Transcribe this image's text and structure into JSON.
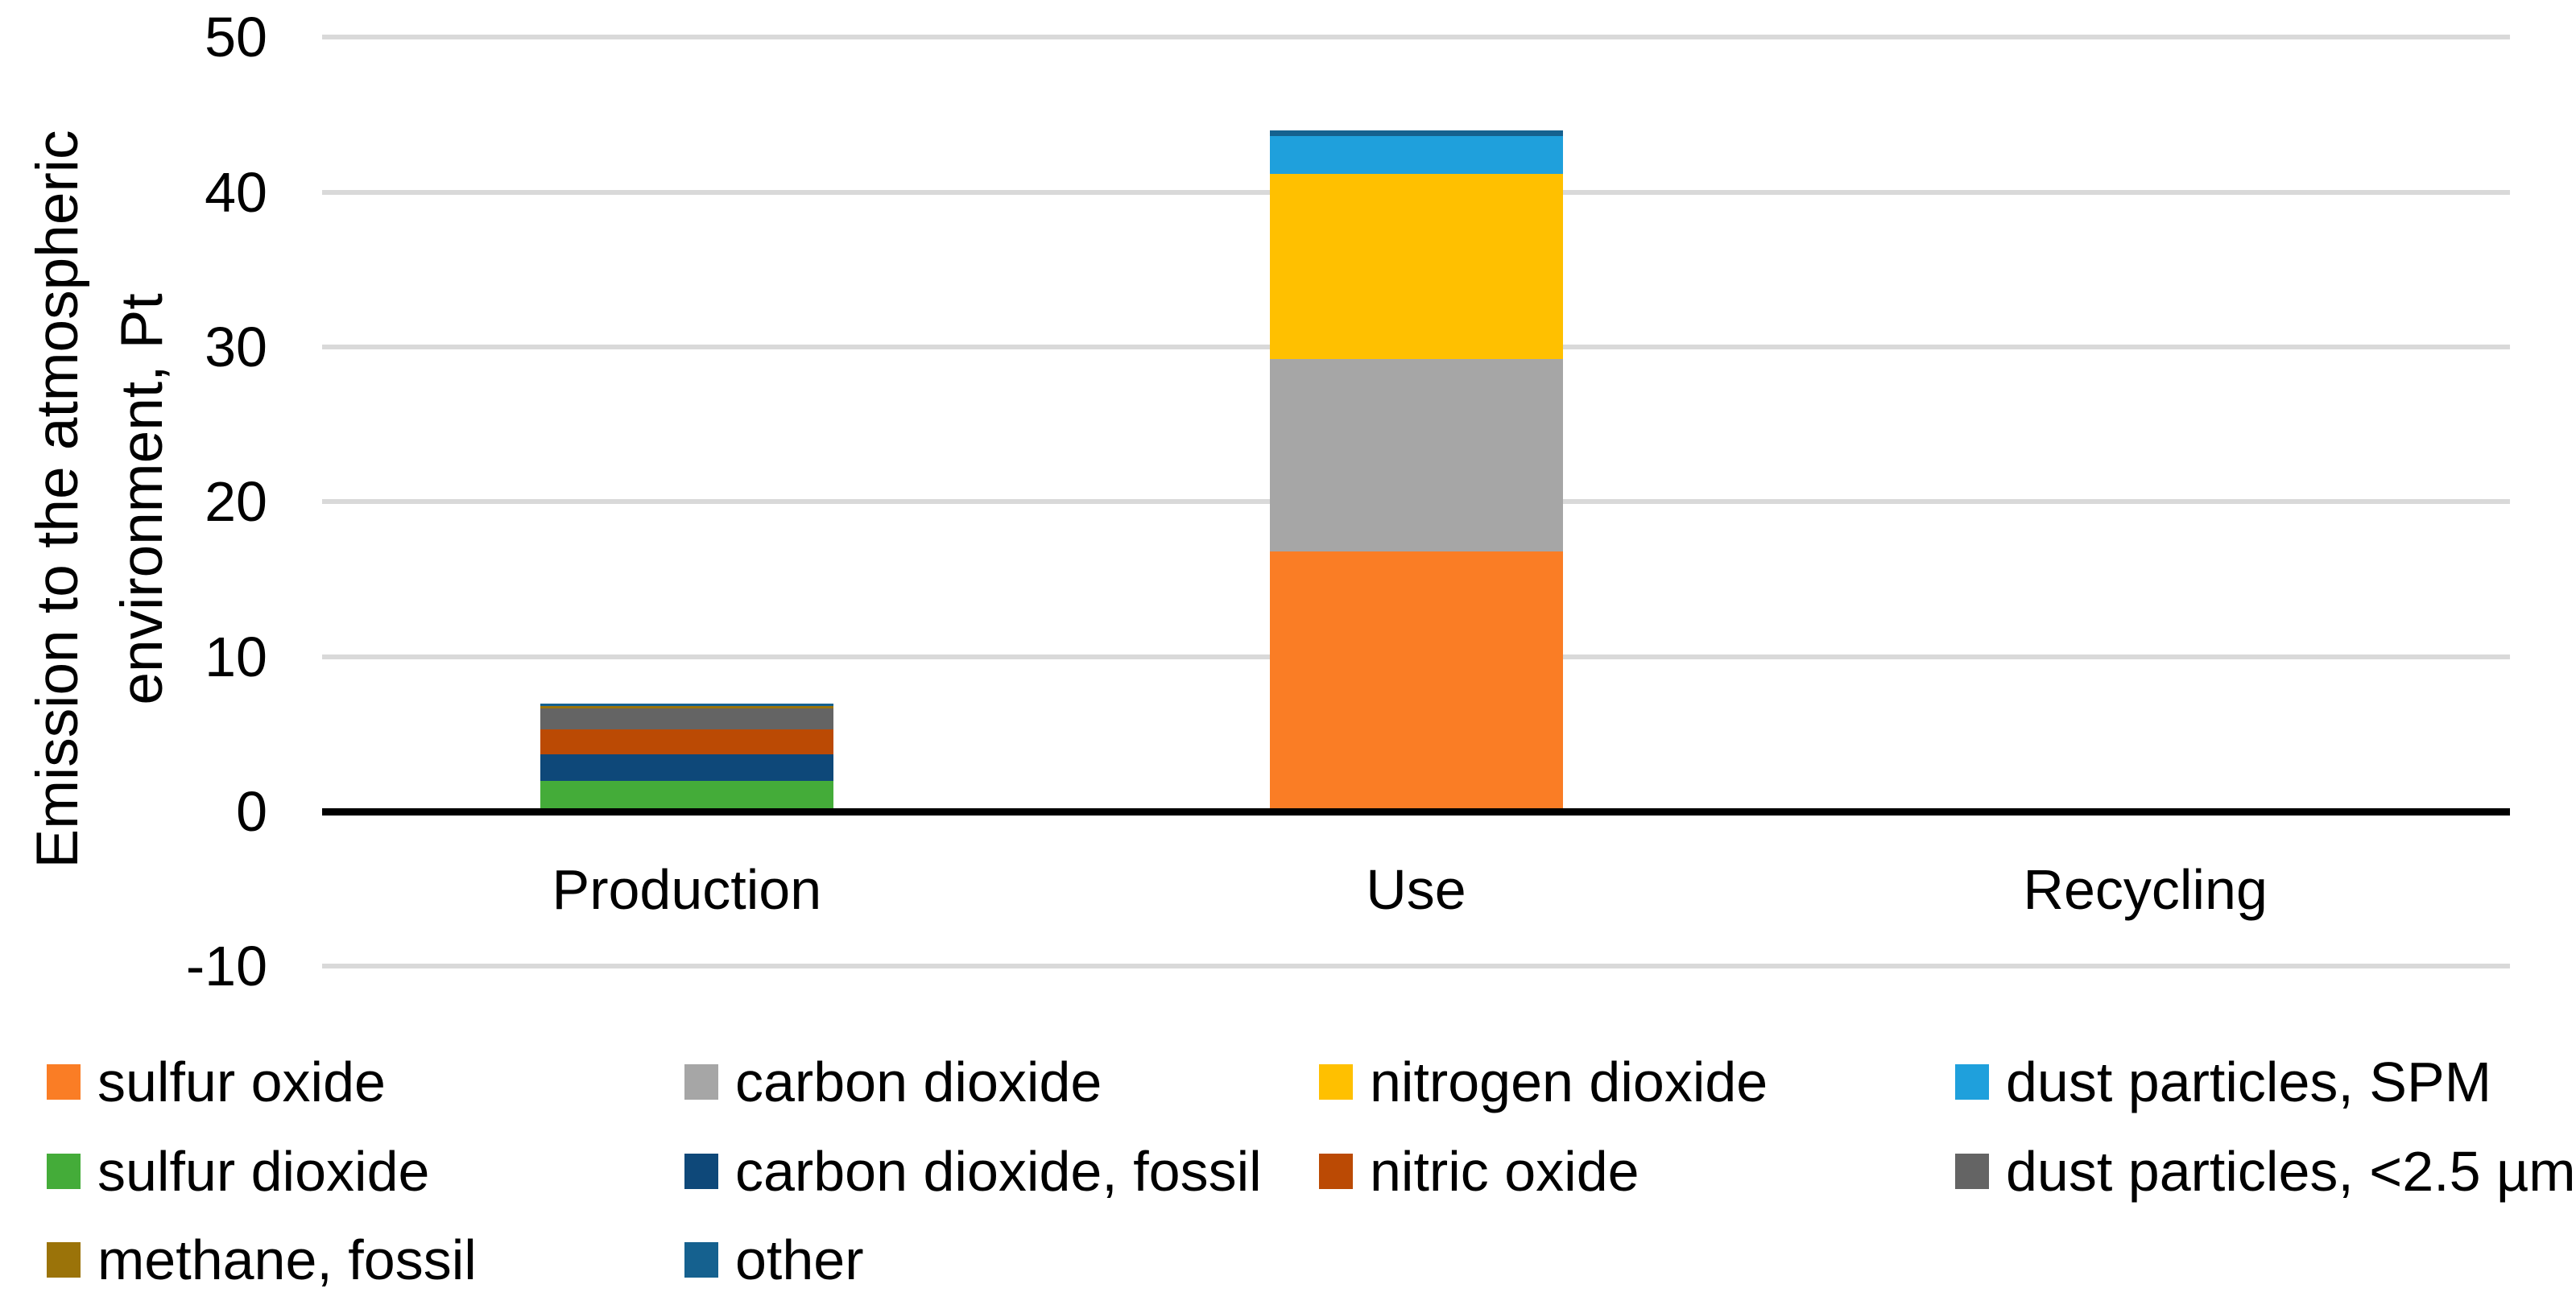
{
  "page": {
    "background": "#FFFFFF",
    "text_color": "#000000"
  },
  "chart_data": {
    "type": "bar",
    "stacked": true,
    "title": "",
    "categories": [
      "Production",
      "Use",
      "Recycling"
    ],
    "series": [
      {
        "name": "sulfur oxide",
        "color": "#FA7D25",
        "values": [
          0,
          16.8,
          0
        ]
      },
      {
        "name": "carbon dioxide",
        "color": "#A6A6A6",
        "values": [
          0,
          12.4,
          0
        ]
      },
      {
        "name": "nitrogen dioxide",
        "color": "#FFC000",
        "values": [
          0,
          12.0,
          0
        ]
      },
      {
        "name": "dust particles, SPM",
        "color": "#1FA0DC",
        "values": [
          0,
          2.4,
          0
        ]
      },
      {
        "name": "sulfur dioxide",
        "color": "#44AC39",
        "values": [
          2.0,
          0,
          0
        ]
      },
      {
        "name": "carbon dioxide, fossil",
        "color": "#0E4879",
        "values": [
          1.7,
          0,
          0
        ]
      },
      {
        "name": "nitric oxide",
        "color": "#BB4A04",
        "values": [
          1.6,
          0,
          0
        ]
      },
      {
        "name": "dust particles, <2.5 µm",
        "color": "#646464",
        "values": [
          1.35,
          0,
          0
        ]
      },
      {
        "name": "methane, fossil",
        "color": "#9B7309",
        "values": [
          0.17,
          0,
          0
        ]
      },
      {
        "name": "other",
        "color": "#15618F",
        "values": [
          0.17,
          0.4,
          0
        ]
      }
    ],
    "totals": {
      "Production": 7.0,
      "Use": 44.0,
      "Recycling": 0
    },
    "ylabel": "Emission to the atmospheric environment, Pt",
    "ylabel_lines": [
      "Emission to the atmospheric",
      "environment, Pt"
    ],
    "xlabel": "",
    "ylim": [
      -10,
      50
    ],
    "yticks": [
      50,
      40,
      30,
      20,
      10,
      0,
      -10
    ],
    "grid": true,
    "gridline_color": "#D9D9D9",
    "axis_color": "#000000",
    "legend_position": "bottom",
    "legend_columns": 4
  }
}
